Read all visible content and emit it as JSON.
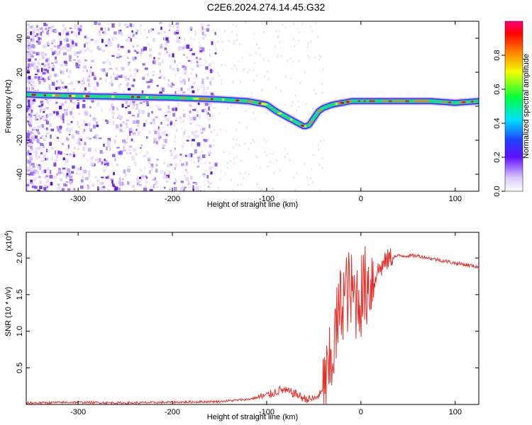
{
  "title": "C2E6.2024.274.14.45.G32",
  "chart_data": [
    {
      "type": "heatmap",
      "xlabel": "Height of straight line (km)",
      "ylabel": "Frequency (Hz)",
      "xlim": [
        -355,
        125
      ],
      "ylim": [
        -50,
        50
      ],
      "xticks": [
        -300,
        -200,
        -100,
        0,
        100
      ],
      "yticks": [
        -40,
        -20,
        0,
        20,
        40
      ],
      "ridge": {
        "x": [
          -355,
          -340,
          -300,
          -250,
          -200,
          -150,
          -120,
          -100,
          -90,
          -80,
          -70,
          -60,
          -55,
          -50,
          -45,
          -40,
          -35,
          -30,
          -20,
          -10,
          0,
          20,
          50,
          75,
          100,
          125
        ],
        "y": [
          7,
          6.5,
          6,
          5.5,
          5,
          4,
          3,
          1,
          -3,
          -6,
          -9,
          -12,
          -11,
          -7,
          -3,
          -1,
          0,
          1,
          2,
          3,
          3,
          3,
          3,
          3,
          2,
          3
        ]
      },
      "colorbar": {
        "label": "Normalized spectral amplitude",
        "ticks": [
          0.0,
          0.2,
          0.4,
          0.6,
          0.8
        ],
        "range": [
          0,
          1
        ]
      }
    },
    {
      "type": "line",
      "xlabel": "Height of straight line (km)",
      "ylabel": "SNR (10 * v/v)",
      "y_multiplier": "(x10",
      "y_multiplier_exp": "4",
      "y_multiplier_close": ")",
      "xlim": [
        -355,
        125
      ],
      "ylim": [
        0,
        2.35
      ],
      "xticks": [
        -300,
        -200,
        -100,
        0,
        100
      ],
      "yticks": [
        0.5,
        1.0,
        1.5,
        2.0
      ],
      "color": "#e8302a",
      "series": [
        {
          "x": [
            -355,
            -300,
            -250,
            -200,
            -150,
            -120,
            -100,
            -85,
            -70,
            -60,
            -50,
            -40,
            -35,
            -30,
            -25,
            -20,
            -15,
            -10,
            -5,
            0,
            10,
            20,
            30,
            40,
            60,
            80,
            100,
            125
          ],
          "y": [
            0.02,
            0.03,
            0.02,
            0.03,
            0.04,
            0.07,
            0.12,
            0.2,
            0.15,
            0.08,
            0.07,
            0.18,
            0.35,
            0.7,
            1.1,
            1.45,
            1.55,
            1.5,
            1.45,
            1.5,
            1.7,
            1.85,
            2.0,
            2.03,
            2.03,
            1.98,
            1.93,
            1.88
          ]
        }
      ]
    }
  ]
}
